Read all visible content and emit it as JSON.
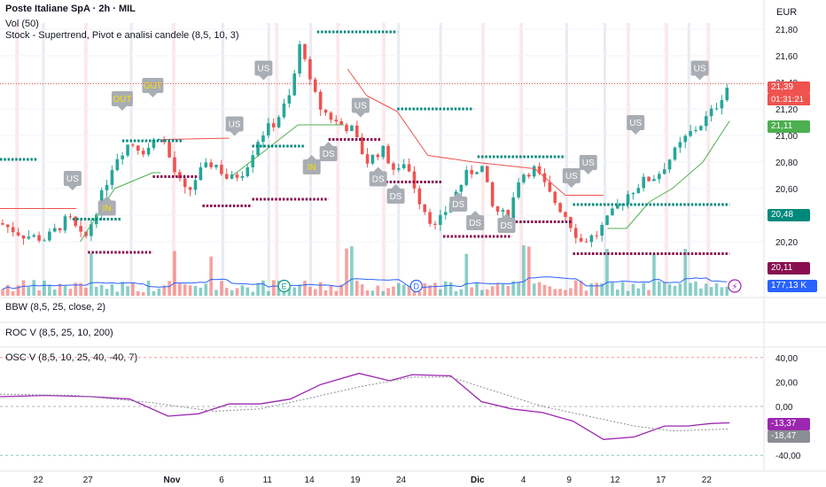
{
  "header": {
    "title": "Poste Italiane SpA · 2h · MIL",
    "indicator_vol": "Vol (50)",
    "indicator_stock": "Stock - Supertrend, Pivot e analisi candele (8,5, 10, 3)",
    "currency": "EUR"
  },
  "panes": {
    "bbw": "BBW (8,5, 25, close, 2)",
    "rocv": "ROC V (8,5, 25, 10, 200)",
    "oscv": "OSC V (8,5, 10, 25, 40, -40, 7)"
  },
  "price_labels": {
    "last": "21,39",
    "timer": "01:31:21",
    "supertrend": "21,11",
    "pivot_high": "20,48",
    "pivot_low": "20,11",
    "volume": "177,13 K"
  },
  "osc_labels": {
    "osc": "-13,37",
    "signal": "-18,47"
  },
  "colors": {
    "up": "#26a69a",
    "down": "#ef5350",
    "supertrend_up": "#4caf50",
    "supertrend_down": "#ef5350",
    "pivot_high": "#00897b",
    "pivot_low": "#880e4f",
    "osc": "#9c27b0",
    "vol_ma": "#2962ff"
  },
  "chart_data": {
    "type": "candlestick",
    "price_axis": {
      "ticks": [
        "21,80",
        "21,60",
        "21,40",
        "21,20",
        "21,00",
        "20,80",
        "20,60",
        "20,40",
        "20,20"
      ],
      "tick_values": [
        21.8,
        21.6,
        21.4,
        21.2,
        21.0,
        20.8,
        20.6,
        20.4,
        20.2
      ]
    },
    "osc_axis": {
      "ticks": [
        "40,00",
        "20,00",
        "0,00",
        "-40,00"
      ],
      "tick_values": [
        40,
        20,
        0,
        -40
      ]
    },
    "x_axis": {
      "labels": [
        "22",
        "27",
        "Nov",
        "6",
        "11",
        "14",
        "19",
        "24",
        "Dic",
        "4",
        "9",
        "12",
        "17",
        "22"
      ],
      "positions": [
        0.05,
        0.115,
        0.225,
        0.29,
        0.35,
        0.405,
        0.465,
        0.525,
        0.625,
        0.685,
        0.745,
        0.805,
        0.865,
        0.925
      ]
    },
    "close_path": [
      [
        0,
        20.34
      ],
      [
        0.03,
        20.25
      ],
      [
        0.06,
        20.22
      ],
      [
        0.09,
        20.38
      ],
      [
        0.11,
        20.2
      ],
      [
        0.13,
        20.5
      ],
      [
        0.15,
        20.82
      ],
      [
        0.17,
        20.95
      ],
      [
        0.19,
        20.88
      ],
      [
        0.21,
        21.02
      ],
      [
        0.23,
        20.7
      ],
      [
        0.245,
        20.55
      ],
      [
        0.26,
        20.72
      ],
      [
        0.28,
        20.8
      ],
      [
        0.3,
        20.66
      ],
      [
        0.32,
        20.74
      ],
      [
        0.34,
        21.0
      ],
      [
        0.36,
        21.1
      ],
      [
        0.38,
        21.3
      ],
      [
        0.395,
        21.75
      ],
      [
        0.405,
        21.4
      ],
      [
        0.42,
        21.2
      ],
      [
        0.44,
        21.1
      ],
      [
        0.46,
        21.05
      ],
      [
        0.48,
        20.8
      ],
      [
        0.5,
        20.9
      ],
      [
        0.52,
        20.7
      ],
      [
        0.53,
        20.82
      ],
      [
        0.55,
        20.5
      ],
      [
        0.57,
        20.3
      ],
      [
        0.59,
        20.5
      ],
      [
        0.61,
        20.7
      ],
      [
        0.63,
        20.78
      ],
      [
        0.645,
        20.45
      ],
      [
        0.665,
        20.38
      ],
      [
        0.68,
        20.7
      ],
      [
        0.7,
        20.75
      ],
      [
        0.72,
        20.55
      ],
      [
        0.74,
        20.4
      ],
      [
        0.76,
        20.2
      ],
      [
        0.78,
        20.25
      ],
      [
        0.8,
        20.4
      ],
      [
        0.82,
        20.55
      ],
      [
        0.84,
        20.65
      ],
      [
        0.86,
        20.7
      ],
      [
        0.88,
        20.85
      ],
      [
        0.9,
        21.0
      ],
      [
        0.92,
        21.1
      ],
      [
        0.935,
        21.2
      ],
      [
        0.955,
        21.4
      ]
    ],
    "supertrend": [
      [
        0,
        20.45,
        "down"
      ],
      [
        0.1,
        20.45,
        "down"
      ],
      [
        0.105,
        20.2,
        "up"
      ],
      [
        0.15,
        20.6,
        "up"
      ],
      [
        0.2,
        20.72,
        "up"
      ],
      [
        0.21,
        20.72,
        "up"
      ],
      [
        0.215,
        20.97,
        "down"
      ],
      [
        0.3,
        20.98,
        "down"
      ],
      [
        0.305,
        20.7,
        "up"
      ],
      [
        0.35,
        20.9,
        "up"
      ],
      [
        0.39,
        21.08,
        "up"
      ],
      [
        0.45,
        21.08,
        "up"
      ],
      [
        0.455,
        21.5,
        "down"
      ],
      [
        0.48,
        21.3,
        "down"
      ],
      [
        0.52,
        21.18,
        "down"
      ],
      [
        0.56,
        20.85,
        "down"
      ],
      [
        0.62,
        20.8,
        "down"
      ],
      [
        0.7,
        20.75,
        "down"
      ],
      [
        0.74,
        20.55,
        "down"
      ],
      [
        0.79,
        20.55,
        "down"
      ],
      [
        0.795,
        20.3,
        "up"
      ],
      [
        0.82,
        20.3,
        "up"
      ],
      [
        0.85,
        20.5,
        "up"
      ],
      [
        0.88,
        20.6,
        "up"
      ],
      [
        0.92,
        20.8,
        "up"
      ],
      [
        0.955,
        21.11,
        "up"
      ]
    ],
    "pivots": [
      {
        "kind": "high",
        "x0": 0.0,
        "x1": 0.05,
        "y": 20.82
      },
      {
        "kind": "high",
        "x0": 0.095,
        "x1": 0.16,
        "y": 20.37
      },
      {
        "kind": "high",
        "x0": 0.16,
        "x1": 0.24,
        "y": 20.96
      },
      {
        "kind": "high",
        "x0": 0.33,
        "x1": 0.4,
        "y": 20.92
      },
      {
        "kind": "high",
        "x0": 0.415,
        "x1": 0.52,
        "y": 21.78
      },
      {
        "kind": "high",
        "x0": 0.52,
        "x1": 0.62,
        "y": 21.2
      },
      {
        "kind": "high",
        "x0": 0.625,
        "x1": 0.74,
        "y": 20.84
      },
      {
        "kind": "high",
        "x0": 0.75,
        "x1": 0.955,
        "y": 20.48
      },
      {
        "kind": "low",
        "x0": 0.115,
        "x1": 0.2,
        "y": 20.12
      },
      {
        "kind": "low",
        "x0": 0.2,
        "x1": 0.26,
        "y": 20.69
      },
      {
        "kind": "low",
        "x0": 0.265,
        "x1": 0.33,
        "y": 20.47
      },
      {
        "kind": "low",
        "x0": 0.33,
        "x1": 0.43,
        "y": 20.52
      },
      {
        "kind": "low",
        "x0": 0.43,
        "x1": 0.5,
        "y": 20.97
      },
      {
        "kind": "low",
        "x0": 0.5,
        "x1": 0.58,
        "y": 20.65
      },
      {
        "kind": "low",
        "x0": 0.58,
        "x1": 0.67,
        "y": 20.24
      },
      {
        "kind": "low",
        "x0": 0.67,
        "x1": 0.75,
        "y": 20.35
      },
      {
        "kind": "low",
        "x0": 0.75,
        "x1": 0.955,
        "y": 20.11
      }
    ],
    "signals": [
      {
        "label": "US",
        "x": 0.095,
        "y": 20.62,
        "kind": "us"
      },
      {
        "label": "IN",
        "x": 0.14,
        "y": 20.41,
        "kind": "in"
      },
      {
        "label": "OUT",
        "x": 0.16,
        "y": 21.22,
        "kind": "out"
      },
      {
        "label": "OUT",
        "x": 0.2,
        "y": 21.32,
        "kind": "out"
      },
      {
        "label": "US",
        "x": 0.307,
        "y": 21.03,
        "kind": "us"
      },
      {
        "label": "US",
        "x": 0.345,
        "y": 21.45,
        "kind": "us"
      },
      {
        "label": "IN",
        "x": 0.408,
        "y": 20.72,
        "kind": "in"
      },
      {
        "label": "DS",
        "x": 0.43,
        "y": 20.82,
        "kind": "ds"
      },
      {
        "label": "US",
        "x": 0.472,
        "y": 21.17,
        "kind": "us"
      },
      {
        "label": "DS",
        "x": 0.495,
        "y": 20.63,
        "kind": "ds"
      },
      {
        "label": "DS",
        "x": 0.518,
        "y": 20.5,
        "kind": "ds"
      },
      {
        "label": "DS",
        "x": 0.6,
        "y": 20.44,
        "kind": "ds"
      },
      {
        "label": "DS",
        "x": 0.622,
        "y": 20.3,
        "kind": "ds"
      },
      {
        "label": "DS",
        "x": 0.663,
        "y": 20.28,
        "kind": "ds"
      },
      {
        "label": "US",
        "x": 0.748,
        "y": 20.64,
        "kind": "us"
      },
      {
        "label": "US",
        "x": 0.77,
        "y": 20.74,
        "kind": "us"
      },
      {
        "label": "US",
        "x": 0.832,
        "y": 21.04,
        "kind": "us"
      },
      {
        "label": "US",
        "x": 0.916,
        "y": 21.45,
        "kind": "us"
      }
    ],
    "osc": [
      [
        0.0,
        8
      ],
      [
        0.06,
        9
      ],
      [
        0.12,
        8
      ],
      [
        0.17,
        6
      ],
      [
        0.22,
        -8
      ],
      [
        0.26,
        -6
      ],
      [
        0.3,
        2
      ],
      [
        0.34,
        2
      ],
      [
        0.38,
        6
      ],
      [
        0.42,
        18
      ],
      [
        0.47,
        27
      ],
      [
        0.51,
        21
      ],
      [
        0.54,
        26
      ],
      [
        0.59,
        25
      ],
      [
        0.63,
        4
      ],
      [
        0.67,
        -2
      ],
      [
        0.71,
        -5
      ],
      [
        0.75,
        -12
      ],
      [
        0.79,
        -27
      ],
      [
        0.83,
        -25
      ],
      [
        0.87,
        -16
      ],
      [
        0.9,
        -16
      ],
      [
        0.93,
        -14
      ],
      [
        0.955,
        -13.37
      ]
    ],
    "signal": [
      [
        0.0,
        10
      ],
      [
        0.1,
        9
      ],
      [
        0.2,
        3
      ],
      [
        0.28,
        -4
      ],
      [
        0.34,
        -2
      ],
      [
        0.4,
        6
      ],
      [
        0.47,
        16
      ],
      [
        0.54,
        24
      ],
      [
        0.59,
        24
      ],
      [
        0.65,
        12
      ],
      [
        0.71,
        0
      ],
      [
        0.77,
        -8
      ],
      [
        0.83,
        -16
      ],
      [
        0.88,
        -20
      ],
      [
        0.955,
        -18.47
      ]
    ]
  }
}
